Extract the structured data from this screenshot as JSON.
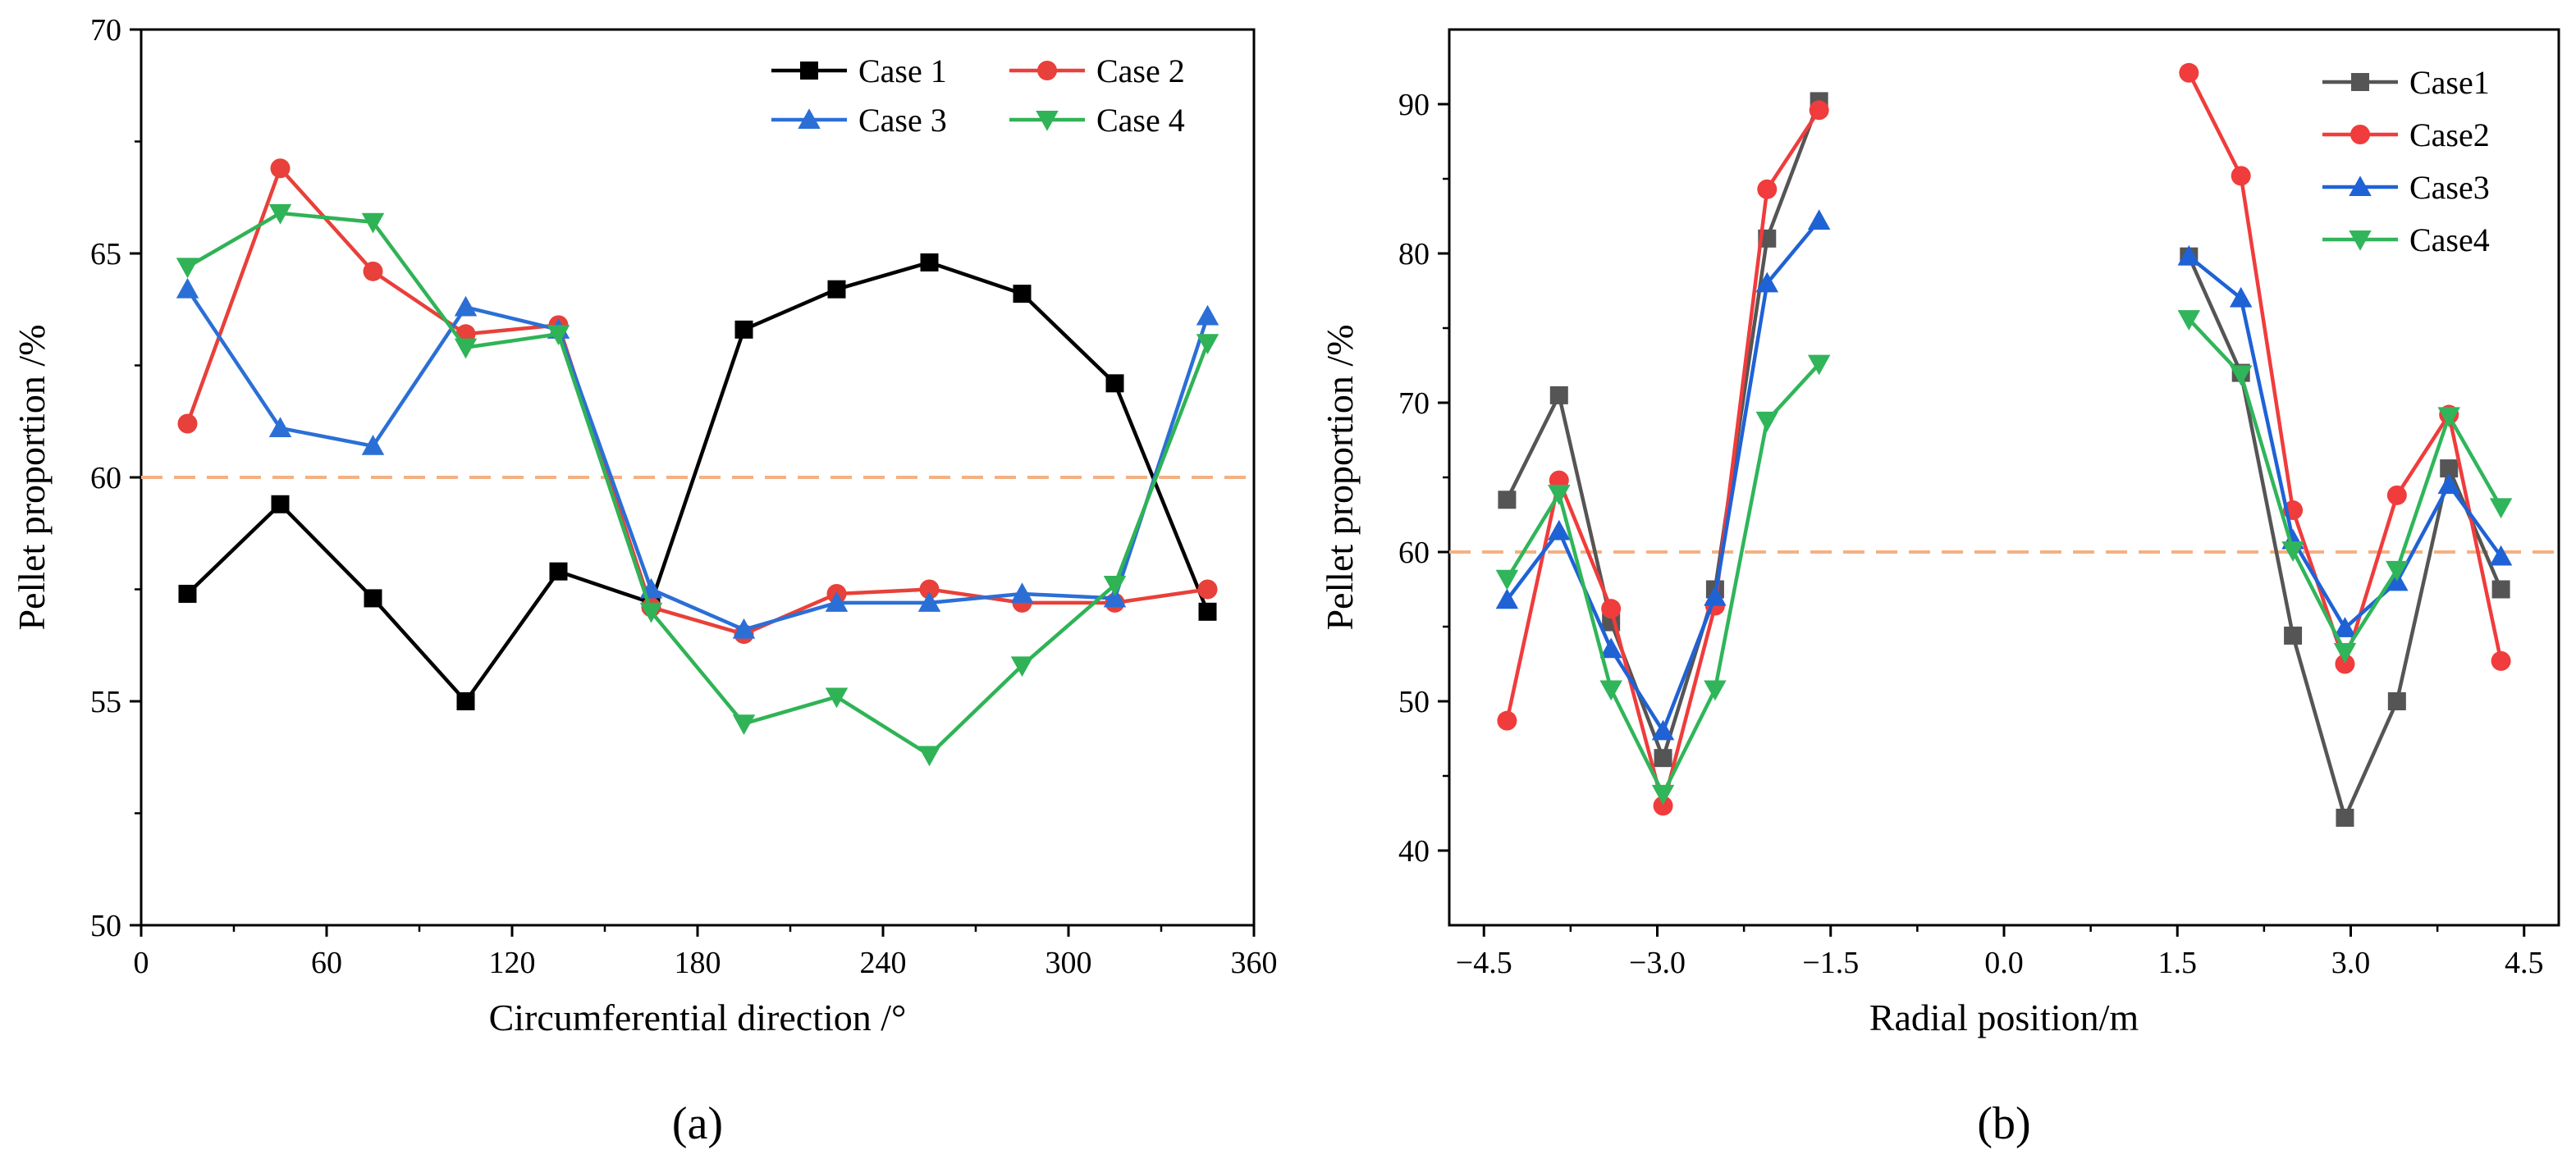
{
  "chart_data": [
    {
      "type": "line",
      "panel_label": "(a)",
      "xlabel": "Circumferential direction /°",
      "ylabel": "Pellet proportion /%",
      "xlim": [
        0,
        360
      ],
      "ylim": [
        50,
        70
      ],
      "xticks": [
        0,
        60,
        120,
        180,
        240,
        300,
        360
      ],
      "xtick_labels": [
        "0",
        "60",
        "120",
        "180",
        "240",
        "300",
        "360"
      ],
      "yticks": [
        50,
        55,
        60,
        65,
        70
      ],
      "ytick_labels": [
        "50",
        "55",
        "60",
        "65",
        "70"
      ],
      "reference_line": 60,
      "reference_color": "#f4b183",
      "legend_position": "top-right",
      "legend_columns": 2,
      "x": [
        15,
        45,
        75,
        105,
        135,
        165,
        195,
        225,
        255,
        285,
        315,
        345
      ],
      "series": [
        {
          "name": "Case 1",
          "color": "#000000",
          "marker": "square",
          "values": [
            57.4,
            59.4,
            57.3,
            55.0,
            57.9,
            57.2,
            63.3,
            64.2,
            64.8,
            64.1,
            62.1,
            57.0
          ]
        },
        {
          "name": "Case 2",
          "color": "#e8403a",
          "marker": "circle",
          "values": [
            61.2,
            66.9,
            64.6,
            63.2,
            63.4,
            57.1,
            56.5,
            57.4,
            57.5,
            57.2,
            57.2,
            57.5
          ]
        },
        {
          "name": "Case 3",
          "color": "#2b6fd6",
          "marker": "triangle-up",
          "values": [
            64.2,
            61.1,
            60.7,
            63.8,
            63.3,
            57.5,
            56.6,
            57.2,
            57.2,
            57.4,
            57.3,
            63.6
          ]
        },
        {
          "name": "Case 4",
          "color": "#2fb356",
          "marker": "triangle-down",
          "values": [
            64.7,
            65.9,
            65.7,
            62.9,
            63.2,
            57.0,
            54.5,
            55.1,
            53.8,
            55.8,
            57.6,
            63.0
          ]
        }
      ]
    },
    {
      "type": "line",
      "panel_label": "(b)",
      "xlabel": "Radial position/m",
      "ylabel": "Pellet proportion /%",
      "xlim": [
        -4.8,
        4.8
      ],
      "ylim": [
        35,
        95
      ],
      "xticks": [
        -4.5,
        -3.0,
        -1.5,
        0.0,
        1.5,
        3.0,
        4.5
      ],
      "xtick_labels": [
        "−4.5",
        "−3.0",
        "−1.5",
        "0.0",
        "1.5",
        "3.0",
        "4.5"
      ],
      "yticks": [
        40,
        50,
        60,
        70,
        80,
        90
      ],
      "ytick_labels": [
        "40",
        "50",
        "60",
        "70",
        "80",
        "90"
      ],
      "reference_line": 60,
      "reference_color": "#f4b183",
      "legend_position": "top-right",
      "legend_columns": 1,
      "x_left": [
        -4.3,
        -3.85,
        -3.4,
        -2.95,
        -2.5,
        -2.05,
        -1.6
      ],
      "x_right": [
        1.6,
        2.05,
        2.5,
        2.95,
        3.4,
        3.85,
        4.3
      ],
      "series": [
        {
          "name": "Case1",
          "color": "#555555",
          "marker": "square",
          "left": [
            63.5,
            70.5,
            55.3,
            46.2,
            57.5,
            81.0,
            90.2
          ],
          "right": [
            79.8,
            72.0,
            54.4,
            42.2,
            50.0,
            65.6,
            57.5
          ]
        },
        {
          "name": "Case2",
          "color": "#f03c3c",
          "marker": "circle",
          "left": [
            48.7,
            64.8,
            56.2,
            43.0,
            56.4,
            84.3,
            89.6
          ],
          "right": [
            92.1,
            85.2,
            62.8,
            52.5,
            63.8,
            69.2,
            52.7
          ]
        },
        {
          "name": "Case3",
          "color": "#1f62d6",
          "marker": "triangle-up",
          "left": [
            56.8,
            61.4,
            53.5,
            48.0,
            57.0,
            78.0,
            82.2
          ],
          "right": [
            79.8,
            77.0,
            60.8,
            54.9,
            58.0,
            64.5,
            59.7
          ]
        },
        {
          "name": "Case4",
          "color": "#30b55a",
          "marker": "triangle-down",
          "left": [
            58.2,
            63.9,
            50.8,
            43.8,
            50.8,
            68.8,
            72.6
          ],
          "right": [
            75.6,
            71.9,
            60.1,
            53.3,
            58.8,
            69.1,
            63.0
          ]
        }
      ]
    }
  ]
}
